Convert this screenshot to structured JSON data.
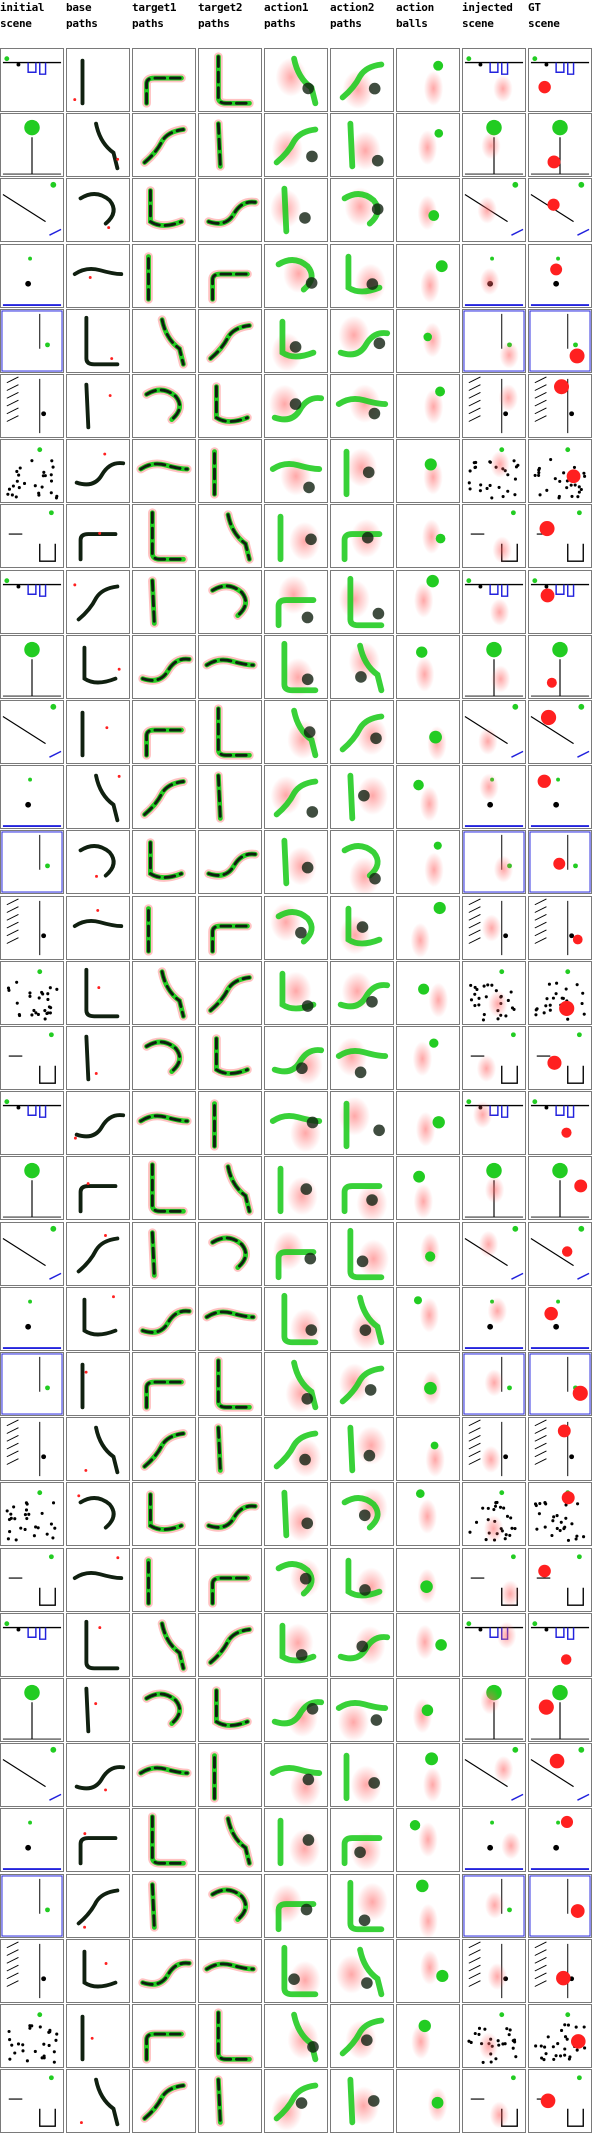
{
  "columns": [
    {
      "id": "initial_scene",
      "label": "initial\nscene"
    },
    {
      "id": "base_paths",
      "label": "base\npaths"
    },
    {
      "id": "target1_paths",
      "label": "target1\npaths"
    },
    {
      "id": "target2_paths",
      "label": "target2\npaths"
    },
    {
      "id": "action1_paths",
      "label": "action1\npaths"
    },
    {
      "id": "action2_paths",
      "label": "action2\npaths"
    },
    {
      "id": "action_balls",
      "label": "action\nballs"
    },
    {
      "id": "injected_scene",
      "label": "injected\nscene"
    },
    {
      "id": "gt_scene",
      "label": "GT\nscene"
    }
  ],
  "row_count": 32,
  "colors": {
    "background": "#ffffff",
    "cell_border": "#7a7a7a",
    "object_black": "#000000",
    "object_green": "#22cc22",
    "object_red": "#ff2020",
    "object_blue": "#2222dd",
    "heat_red": "#ff6060",
    "heat_green": "#33dd33",
    "path_dark": "#102010"
  }
}
